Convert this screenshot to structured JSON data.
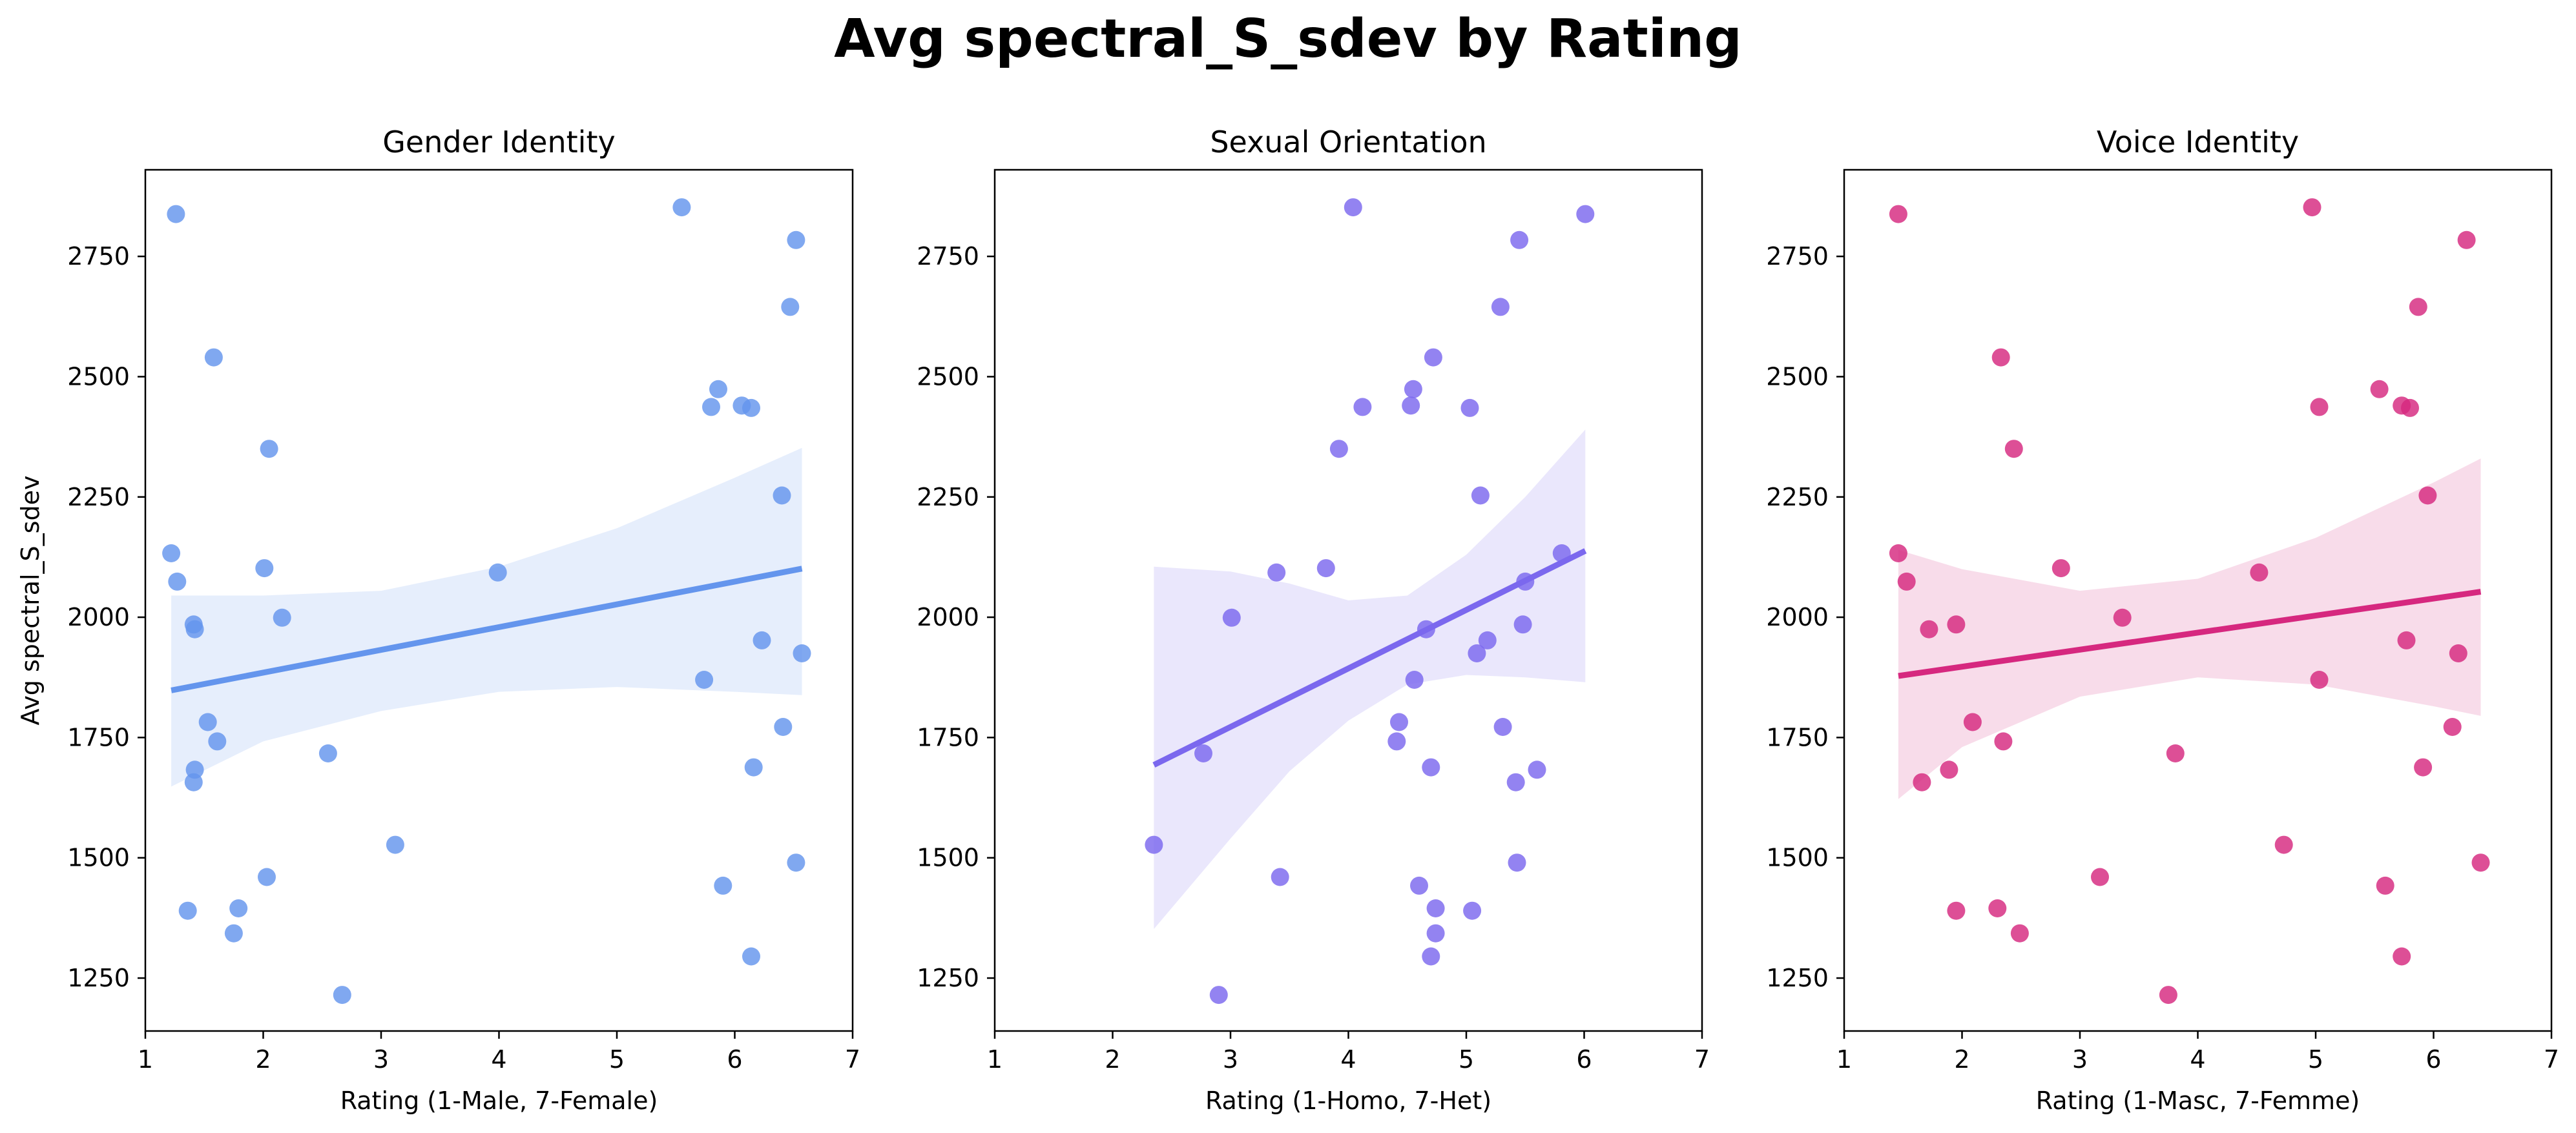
{
  "title": "Avg spectral_S_sdev by Rating",
  "chart_data": [
    {
      "type": "scatter",
      "title": "Gender Identity",
      "xlabel": "Rating (1-Male, 7-Female)",
      "ylabel": "Avg spectral_S_sdev",
      "xlim": [
        1,
        7
      ],
      "ylim": [
        1140,
        2930
      ],
      "xticks": [
        "1",
        "2",
        "3",
        "4",
        "5",
        "6",
        "7"
      ],
      "yticks": [
        "1250",
        "1500",
        "1750",
        "2000",
        "2250",
        "2500",
        "2750"
      ],
      "grid": false,
      "color": "#6495ED",
      "points": [
        [
          1.26,
          2838
        ],
        [
          1.22,
          2133
        ],
        [
          1.27,
          2074
        ],
        [
          1.41,
          1985
        ],
        [
          1.42,
          1975
        ],
        [
          1.58,
          2540
        ],
        [
          1.53,
          1782
        ],
        [
          1.61,
          1742
        ],
        [
          1.42,
          1683
        ],
        [
          1.41,
          1657
        ],
        [
          1.36,
          1390
        ],
        [
          1.79,
          1395
        ],
        [
          1.75,
          1343
        ],
        [
          2.05,
          2350
        ],
        [
          2.01,
          2102
        ],
        [
          2.16,
          1999
        ],
        [
          2.03,
          1460
        ],
        [
          2.55,
          1717
        ],
        [
          2.67,
          1215
        ],
        [
          3.12,
          1527
        ],
        [
          3.99,
          2093
        ],
        [
          5.55,
          2852
        ],
        [
          5.8,
          2437
        ],
        [
          5.86,
          2474
        ],
        [
          6.06,
          2440
        ],
        [
          6.14,
          2435
        ],
        [
          6.47,
          2645
        ],
        [
          6.52,
          2784
        ],
        [
          6.4,
          2253
        ],
        [
          6.23,
          1952
        ],
        [
          5.74,
          1870
        ],
        [
          6.57,
          1925
        ],
        [
          6.41,
          1772
        ],
        [
          6.16,
          1688
        ],
        [
          5.9,
          1442
        ],
        [
          6.52,
          1490
        ],
        [
          6.14,
          1295
        ]
      ],
      "regression": {
        "x": [
          1.22,
          6.57
        ],
        "y": [
          1848,
          2101
        ]
      },
      "ci_band": {
        "x": [
          1.22,
          2.0,
          3.0,
          4.0,
          5.0,
          6.0,
          6.57
        ],
        "upper": [
          2045,
          2045,
          2055,
          2105,
          2185,
          2290,
          2352
        ],
        "lower": [
          1648,
          1742,
          1805,
          1845,
          1855,
          1845,
          1838
        ]
      }
    },
    {
      "type": "scatter",
      "title": "Sexual Orientation",
      "xlabel": "Rating (1-Homo, 7-Het)",
      "ylabel": "",
      "xlim": [
        1,
        7
      ],
      "ylim": [
        1140,
        2930
      ],
      "xticks": [
        "1",
        "2",
        "3",
        "4",
        "5",
        "6",
        "7"
      ],
      "yticks": [
        "1250",
        "1500",
        "1750",
        "2000",
        "2250",
        "2500",
        "2750"
      ],
      "grid": false,
      "color": "#7B68EE",
      "points": [
        [
          2.35,
          1527
        ],
        [
          2.77,
          1717
        ],
        [
          2.9,
          1215
        ],
        [
          3.01,
          1999
        ],
        [
          3.39,
          2093
        ],
        [
          3.42,
          1460
        ],
        [
          3.81,
          2102
        ],
        [
          3.92,
          2350
        ],
        [
          4.04,
          2852
        ],
        [
          4.12,
          2437
        ],
        [
          4.55,
          2474
        ],
        [
          4.53,
          2440
        ],
        [
          4.41,
          1742
        ],
        [
          4.43,
          1782
        ],
        [
          4.56,
          1870
        ],
        [
          4.66,
          1975
        ],
        [
          4.6,
          1442
        ],
        [
          4.7,
          1688
        ],
        [
          4.72,
          2540
        ],
        [
          4.74,
          1395
        ],
        [
          4.74,
          1343
        ],
        [
          4.7,
          1295
        ],
        [
          5.03,
          2435
        ],
        [
          5.05,
          1390
        ],
        [
          5.09,
          1925
        ],
        [
          5.12,
          2253
        ],
        [
          5.18,
          1952
        ],
        [
          5.29,
          2645
        ],
        [
          5.31,
          1772
        ],
        [
          5.42,
          1657
        ],
        [
          5.43,
          1490
        ],
        [
          5.45,
          2784
        ],
        [
          5.48,
          1985
        ],
        [
          5.5,
          2074
        ],
        [
          5.6,
          1683
        ],
        [
          5.81,
          2133
        ],
        [
          6.01,
          2838
        ]
      ],
      "regression": {
        "x": [
          2.35,
          6.01
        ],
        "y": [
          1693,
          2138
        ]
      },
      "ci_band": {
        "x": [
          2.35,
          3.0,
          3.5,
          4.0,
          4.5,
          5.0,
          5.5,
          6.01
        ],
        "upper": [
          2105,
          2095,
          2070,
          2035,
          2045,
          2130,
          2250,
          2390
        ],
        "lower": [
          1352,
          1540,
          1680,
          1785,
          1860,
          1880,
          1875,
          1865
        ]
      }
    },
    {
      "type": "scatter",
      "title": "Voice Identity",
      "xlabel": "Rating (1-Masc, 7-Femme)",
      "ylabel": "",
      "xlim": [
        1,
        7
      ],
      "ylim": [
        1140,
        2930
      ],
      "xticks": [
        "1",
        "2",
        "3",
        "4",
        "5",
        "6",
        "7"
      ],
      "yticks": [
        "1250",
        "1500",
        "1750",
        "2000",
        "2250",
        "2500",
        "2750"
      ],
      "grid": false,
      "color": "#D6287F",
      "points": [
        [
          1.46,
          2838
        ],
        [
          1.46,
          2133
        ],
        [
          1.53,
          2074
        ],
        [
          1.72,
          1975
        ],
        [
          1.95,
          1985
        ],
        [
          1.66,
          1657
        ],
        [
          1.89,
          1683
        ],
        [
          1.95,
          1390
        ],
        [
          2.09,
          1782
        ],
        [
          2.33,
          2540
        ],
        [
          2.35,
          1742
        ],
        [
          2.3,
          1395
        ],
        [
          2.44,
          2350
        ],
        [
          2.49,
          1343
        ],
        [
          2.84,
          2102
        ],
        [
          3.17,
          1460
        ],
        [
          3.36,
          1999
        ],
        [
          3.75,
          1215
        ],
        [
          3.81,
          1717
        ],
        [
          4.52,
          2093
        ],
        [
          4.73,
          1527
        ],
        [
          4.97,
          2852
        ],
        [
          5.03,
          2437
        ],
        [
          5.03,
          1870
        ],
        [
          5.54,
          2474
        ],
        [
          5.59,
          1442
        ],
        [
          5.73,
          2440
        ],
        [
          5.8,
          2435
        ],
        [
          5.73,
          1295
        ],
        [
          5.77,
          1952
        ],
        [
          5.87,
          2645
        ],
        [
          5.91,
          1688
        ],
        [
          5.95,
          2253
        ],
        [
          6.16,
          1772
        ],
        [
          6.21,
          1925
        ],
        [
          6.28,
          2784
        ],
        [
          6.4,
          1490
        ]
      ],
      "regression": {
        "x": [
          1.46,
          6.4
        ],
        "y": [
          1878,
          2053
        ]
      },
      "ci_band": {
        "x": [
          1.46,
          2.0,
          3.0,
          4.0,
          5.0,
          6.0,
          6.4
        ],
        "upper": [
          2140,
          2100,
          2055,
          2080,
          2165,
          2280,
          2330
        ],
        "lower": [
          1622,
          1730,
          1835,
          1875,
          1860,
          1815,
          1795
        ]
      }
    }
  ]
}
